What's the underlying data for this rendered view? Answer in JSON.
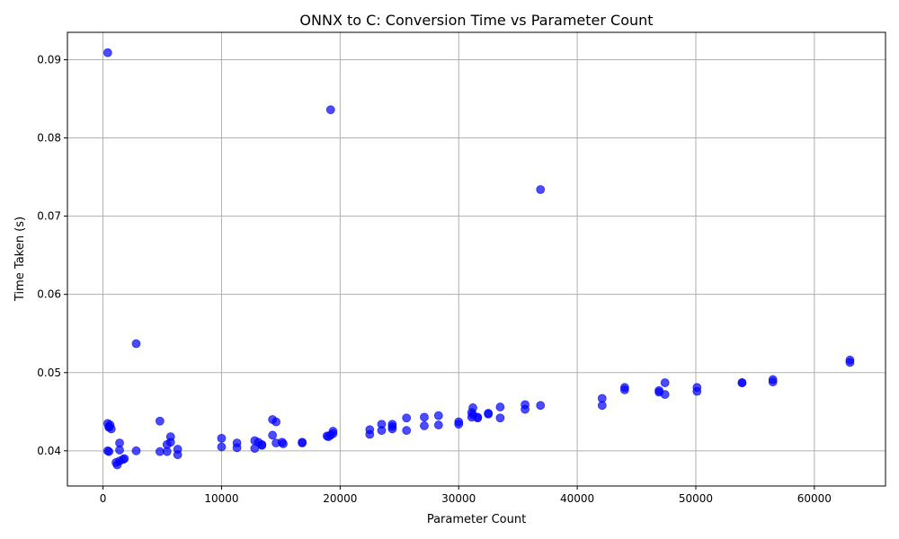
{
  "chart_data": {
    "type": "scatter",
    "title": "ONNX to C: Conversion Time vs Parameter Count",
    "xlabel": "Parameter Count",
    "ylabel": "Time Taken (s)",
    "xlim": [
      -3000,
      66000
    ],
    "ylim": [
      0.0355,
      0.0935
    ],
    "xticks": [
      0,
      10000,
      20000,
      30000,
      40000,
      50000,
      60000
    ],
    "xtick_labels": [
      "0",
      "10000",
      "20000",
      "30000",
      "40000",
      "50000",
      "60000"
    ],
    "yticks": [
      0.04,
      0.05,
      0.06,
      0.07,
      0.08,
      0.09
    ],
    "ytick_labels": [
      "0.04",
      "0.05",
      "0.06",
      "0.07",
      "0.08",
      "0.09"
    ],
    "grid": true,
    "marker_color": "#0000ff",
    "marker_alpha": 0.7,
    "points": [
      [
        400,
        0.0909
      ],
      [
        19200,
        0.0836
      ],
      [
        36900,
        0.0734
      ],
      [
        2800,
        0.0537
      ],
      [
        400,
        0.0435
      ],
      [
        500,
        0.0431
      ],
      [
        600,
        0.0433
      ],
      [
        500,
        0.043
      ],
      [
        700,
        0.0428
      ],
      [
        400,
        0.04
      ],
      [
        500,
        0.0399
      ],
      [
        1100,
        0.0385
      ],
      [
        1200,
        0.0382
      ],
      [
        1400,
        0.0387
      ],
      [
        1700,
        0.0389
      ],
      [
        1800,
        0.039
      ],
      [
        1400,
        0.041
      ],
      [
        1400,
        0.0401
      ],
      [
        2800,
        0.04
      ],
      [
        4800,
        0.0438
      ],
      [
        4800,
        0.0399
      ],
      [
        5400,
        0.0408
      ],
      [
        5400,
        0.0399
      ],
      [
        5700,
        0.0418
      ],
      [
        5700,
        0.0411
      ],
      [
        6300,
        0.0402
      ],
      [
        6300,
        0.0395
      ],
      [
        10000,
        0.0416
      ],
      [
        10000,
        0.0405
      ],
      [
        11300,
        0.041
      ],
      [
        11300,
        0.0404
      ],
      [
        12800,
        0.0413
      ],
      [
        12800,
        0.0403
      ],
      [
        13100,
        0.0411
      ],
      [
        13400,
        0.0408
      ],
      [
        13400,
        0.0407
      ],
      [
        14300,
        0.044
      ],
      [
        14300,
        0.042
      ],
      [
        14600,
        0.0437
      ],
      [
        14600,
        0.041
      ],
      [
        15100,
        0.0411
      ],
      [
        15200,
        0.0409
      ],
      [
        16800,
        0.0411
      ],
      [
        16800,
        0.041
      ],
      [
        18900,
        0.0419
      ],
      [
        19000,
        0.0418
      ],
      [
        19200,
        0.042
      ],
      [
        19400,
        0.0425
      ],
      [
        19400,
        0.0422
      ],
      [
        22500,
        0.0427
      ],
      [
        22500,
        0.0421
      ],
      [
        23500,
        0.0434
      ],
      [
        23500,
        0.0426
      ],
      [
        24400,
        0.0434
      ],
      [
        24400,
        0.0431
      ],
      [
        24400,
        0.0428
      ],
      [
        25600,
        0.0442
      ],
      [
        25600,
        0.0426
      ],
      [
        27100,
        0.0443
      ],
      [
        27100,
        0.0432
      ],
      [
        28300,
        0.0445
      ],
      [
        28300,
        0.0433
      ],
      [
        30000,
        0.0437
      ],
      [
        30000,
        0.0434
      ],
      [
        31100,
        0.0449
      ],
      [
        31100,
        0.0443
      ],
      [
        31200,
        0.0455
      ],
      [
        31200,
        0.0446
      ],
      [
        31600,
        0.0443
      ],
      [
        31600,
        0.0442
      ],
      [
        32500,
        0.0448
      ],
      [
        32500,
        0.0447
      ],
      [
        33500,
        0.0456
      ],
      [
        33500,
        0.0442
      ],
      [
        35600,
        0.0459
      ],
      [
        35600,
        0.0453
      ],
      [
        36900,
        0.0458
      ],
      [
        42100,
        0.0467
      ],
      [
        42100,
        0.0458
      ],
      [
        44000,
        0.0481
      ],
      [
        44000,
        0.0478
      ],
      [
        46900,
        0.0477
      ],
      [
        46900,
        0.0475
      ],
      [
        47400,
        0.0487
      ],
      [
        47400,
        0.0472
      ],
      [
        50100,
        0.0481
      ],
      [
        50100,
        0.0476
      ],
      [
        53900,
        0.0487
      ],
      [
        53900,
        0.0487
      ],
      [
        56500,
        0.0491
      ],
      [
        56500,
        0.0488
      ],
      [
        63000,
        0.0516
      ],
      [
        63000,
        0.0513
      ]
    ]
  }
}
